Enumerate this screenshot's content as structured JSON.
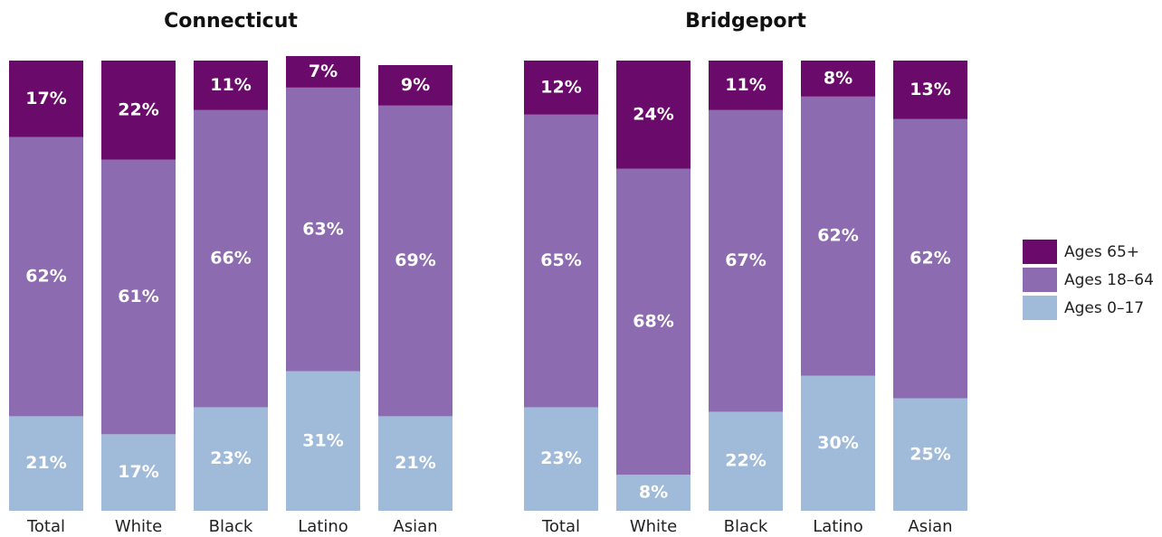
{
  "chart_data": [
    {
      "type": "stacked_bar",
      "title": "Connecticut",
      "categories": [
        "Total",
        "White",
        "Black",
        "Latino",
        "Asian"
      ],
      "ylim": [
        0,
        100
      ],
      "series": [
        {
          "name": "Ages 0–17",
          "color": "#a0bad9",
          "values": [
            21,
            17,
            23,
            31,
            21
          ],
          "value_labels": [
            "21%",
            "17%",
            "23%",
            "31%",
            "21%"
          ]
        },
        {
          "name": "Ages 18–64",
          "color": "#8d6bb0",
          "values": [
            62,
            61,
            66,
            63,
            69
          ],
          "value_labels": [
            "62%",
            "61%",
            "66%",
            "63%",
            "69%"
          ]
        },
        {
          "name": "Ages 65+",
          "color": "#6a0a6b",
          "values": [
            17,
            22,
            11,
            7,
            9
          ],
          "value_labels": [
            "17%",
            "22%",
            "11%",
            "7%",
            "9%"
          ]
        }
      ]
    },
    {
      "type": "stacked_bar",
      "title": "Bridgeport",
      "categories": [
        "Total",
        "White",
        "Black",
        "Latino",
        "Asian"
      ],
      "ylim": [
        0,
        100
      ],
      "series": [
        {
          "values": [
            23,
            8,
            22,
            30,
            25
          ],
          "value_labels": [
            "23%",
            "8%",
            "22%",
            "30%",
            "25%"
          ]
        },
        {
          "values": [
            65,
            68,
            67,
            62,
            62
          ],
          "value_labels": [
            "65%",
            "68%",
            "67%",
            "62%",
            "62%"
          ]
        },
        {
          "values": [
            12,
            24,
            11,
            8,
            13
          ],
          "value_labels": [
            "12%",
            "24%",
            "11%",
            "8%",
            "13%"
          ]
        }
      ]
    }
  ]
}
